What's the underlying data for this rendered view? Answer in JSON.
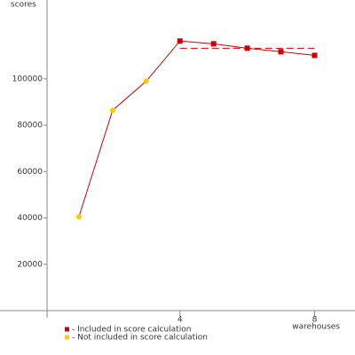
{
  "chart_data": {
    "type": "line",
    "ylabel": "scores",
    "xlabel": "warehouses",
    "x": [
      1,
      2,
      3,
      4,
      5,
      6,
      7,
      8
    ],
    "values": [
      40500,
      86400,
      99000,
      116300,
      115100,
      113200,
      111700,
      110100
    ],
    "included": [
      false,
      false,
      false,
      true,
      true,
      true,
      true,
      true
    ],
    "line_color": "#cc0000",
    "legend": [
      {
        "label": "- Included in score calculation",
        "color": "#cc0000"
      },
      {
        "label": "- Not included in score calculation",
        "color": "#ffcc00"
      }
    ],
    "score_line": {
      "x": [
        4,
        8
      ],
      "value": 113200,
      "color": "#cc0000"
    },
    "xlim": [
      0,
      9.2
    ],
    "xticks": [
      4,
      8
    ],
    "ylim": [
      0,
      134000
    ],
    "yticks": [
      20000,
      40000,
      60000,
      80000,
      100000
    ]
  }
}
